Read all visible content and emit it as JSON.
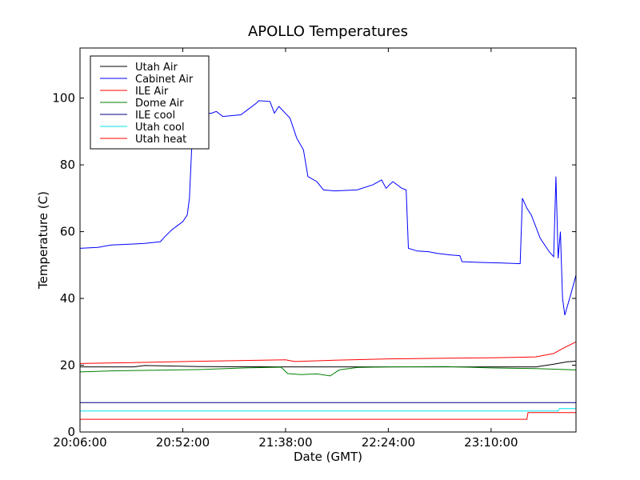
{
  "chart_data": {
    "type": "line",
    "title": "APOLLO Temperatures",
    "xlabel": "Date (GMT)",
    "ylabel": "Temperature (C)",
    "xlim": [
      "20:06:00",
      "23:48:00"
    ],
    "ylim": [
      0,
      115
    ],
    "x_ticks": [
      "20:06:00",
      "20:52:00",
      "21:38:00",
      "22:24:00",
      "23:10:00"
    ],
    "y_ticks": [
      0,
      20,
      40,
      60,
      80,
      100
    ],
    "grid": false,
    "legend": "top-left",
    "series": [
      {
        "name": "Utah Air",
        "color": "#000000",
        "points": [
          [
            "20:06:00",
            19.5
          ],
          [
            "20:30:00",
            19.5
          ],
          [
            "20:35:00",
            19.9
          ],
          [
            "21:00:00",
            19.6
          ],
          [
            "21:38:00",
            19.5
          ],
          [
            "22:24:00",
            19.5
          ],
          [
            "23:10:00",
            19.5
          ],
          [
            "23:30:00",
            19.5
          ],
          [
            "23:38:00",
            20.3
          ],
          [
            "23:44:00",
            21.0
          ],
          [
            "23:48:00",
            21.2
          ]
        ]
      },
      {
        "name": "Cabinet Air",
        "color": "#0000ff",
        "points": [
          [
            "20:06:00",
            55.0
          ],
          [
            "20:14:00",
            55.3
          ],
          [
            "20:20:00",
            56.0
          ],
          [
            "20:30:00",
            56.3
          ],
          [
            "20:35:00",
            56.5
          ],
          [
            "20:42:00",
            57.0
          ],
          [
            "20:44:00",
            58.5
          ],
          [
            "20:47:00",
            60.5
          ],
          [
            "20:50:00",
            62.0
          ],
          [
            "20:52:00",
            63.0
          ],
          [
            "20:54:00",
            65.0
          ],
          [
            "20:55:00",
            70.0
          ],
          [
            "20:56:00",
            85.0
          ],
          [
            "20:57:00",
            100.0
          ],
          [
            "20:58:00",
            97.0
          ],
          [
            "21:00:00",
            95.0
          ],
          [
            "21:05:00",
            95.5
          ],
          [
            "21:07:00",
            96.0
          ],
          [
            "21:10:00",
            94.5
          ],
          [
            "21:15:00",
            94.8
          ],
          [
            "21:18:00",
            95.0
          ],
          [
            "21:21:00",
            96.5
          ],
          [
            "21:25:00",
            98.5
          ],
          [
            "21:26:00",
            99.2
          ],
          [
            "21:31:00",
            99.0
          ],
          [
            "21:33:00",
            95.5
          ],
          [
            "21:35:00",
            97.5
          ],
          [
            "21:40:00",
            94.0
          ],
          [
            "21:43:00",
            88.0
          ],
          [
            "21:46:00",
            84.5
          ],
          [
            "21:48:00",
            76.5
          ],
          [
            "21:52:00",
            75.0
          ],
          [
            "21:55:00",
            72.5
          ],
          [
            "22:00:00",
            72.2
          ],
          [
            "22:10:00",
            72.5
          ],
          [
            "22:17:00",
            74.0
          ],
          [
            "22:21:00",
            75.5
          ],
          [
            "22:23:00",
            73.0
          ],
          [
            "22:26:00",
            75.0
          ],
          [
            "22:30:00",
            73.0
          ],
          [
            "22:32:00",
            72.5
          ],
          [
            "22:33:00",
            55.0
          ],
          [
            "22:37:00",
            54.2
          ],
          [
            "22:42:00",
            54.0
          ],
          [
            "22:46:00",
            53.5
          ],
          [
            "22:52:00",
            53.0
          ],
          [
            "22:56:00",
            52.8
          ],
          [
            "22:57:00",
            51.0
          ],
          [
            "23:05:00",
            50.8
          ],
          [
            "23:15:00",
            50.6
          ],
          [
            "23:23:00",
            50.4
          ],
          [
            "23:24:00",
            70.0
          ],
          [
            "23:26:00",
            67.0
          ],
          [
            "23:28:00",
            65.0
          ],
          [
            "23:32:00",
            58.0
          ],
          [
            "23:36:00",
            54.0
          ],
          [
            "23:38:00",
            52.5
          ],
          [
            "23:39:00",
            76.5
          ],
          [
            "23:40:00",
            52.0
          ],
          [
            "23:41:00",
            60.0
          ],
          [
            "23:42:00",
            40.0
          ],
          [
            "23:43:00",
            35.0
          ],
          [
            "23:46:00",
            42.0
          ],
          [
            "23:48:00",
            47.0
          ]
        ]
      },
      {
        "name": "ILE Air",
        "color": "#ff0000",
        "points": [
          [
            "20:06:00",
            20.5
          ],
          [
            "20:30:00",
            20.8
          ],
          [
            "21:00:00",
            21.2
          ],
          [
            "21:38:00",
            21.6
          ],
          [
            "21:42:00",
            21.1
          ],
          [
            "22:00:00",
            21.5
          ],
          [
            "22:24:00",
            21.9
          ],
          [
            "22:50:00",
            22.1
          ],
          [
            "23:10:00",
            22.2
          ],
          [
            "23:30:00",
            22.5
          ],
          [
            "23:38:00",
            23.5
          ],
          [
            "23:42:00",
            25.0
          ],
          [
            "23:48:00",
            27.0
          ]
        ]
      },
      {
        "name": "Dome Air",
        "color": "#008000",
        "points": [
          [
            "20:06:00",
            18.0
          ],
          [
            "20:20:00",
            18.3
          ],
          [
            "20:40:00",
            18.5
          ],
          [
            "21:00:00",
            18.7
          ],
          [
            "21:20:00",
            19.2
          ],
          [
            "21:36:00",
            19.4
          ],
          [
            "21:39:00",
            17.5
          ],
          [
            "21:45:00",
            17.2
          ],
          [
            "21:52:00",
            17.4
          ],
          [
            "21:58:00",
            16.8
          ],
          [
            "22:02:00",
            18.6
          ],
          [
            "22:10:00",
            19.3
          ],
          [
            "22:24:00",
            19.5
          ],
          [
            "22:50:00",
            19.6
          ],
          [
            "23:10:00",
            19.2
          ],
          [
            "23:30:00",
            19.0
          ],
          [
            "23:48:00",
            18.6
          ]
        ]
      },
      {
        "name": "ILE cool",
        "color": "#000080",
        "points": [
          [
            "20:06:00",
            8.8
          ],
          [
            "23:48:00",
            8.8
          ]
        ]
      },
      {
        "name": "Utah cool",
        "color": "#00e5ee",
        "points": [
          [
            "20:06:00",
            6.3
          ],
          [
            "23:40:00",
            6.3
          ],
          [
            "23:40:30",
            7.0
          ],
          [
            "23:48:00",
            7.0
          ]
        ]
      },
      {
        "name": "Utah heat",
        "color": "#ff0000",
        "points": [
          [
            "20:06:00",
            3.8
          ],
          [
            "23:26:00",
            3.8
          ],
          [
            "23:26:30",
            5.8
          ],
          [
            "23:48:00",
            5.8
          ]
        ]
      }
    ]
  }
}
